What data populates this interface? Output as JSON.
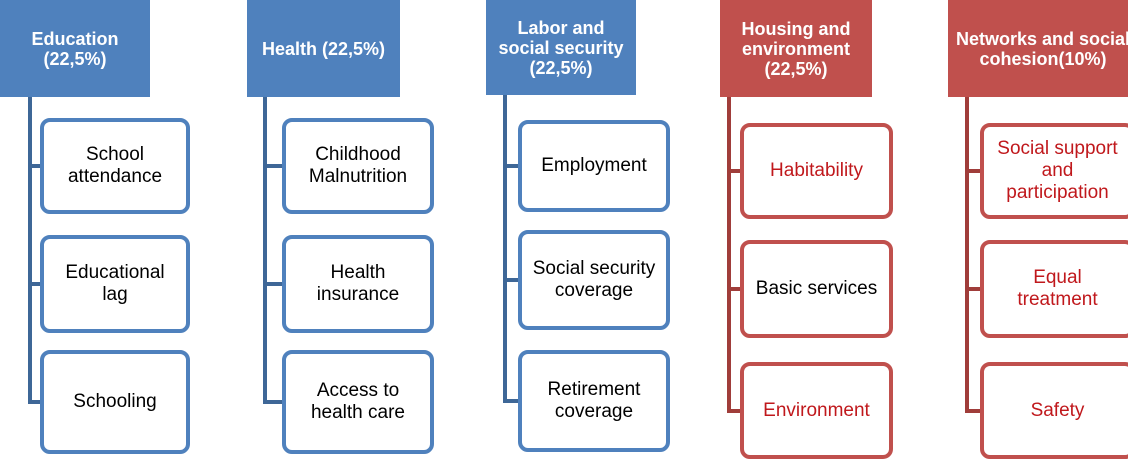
{
  "columns": [
    {
      "header": "Education (22,5%)",
      "children": [
        "School attendance",
        "Educational lag",
        "Schooling"
      ]
    },
    {
      "header": "Health (22,5%)",
      "children": [
        "Childhood Malnutrition",
        "Health insurance",
        "Access to health care"
      ]
    },
    {
      "header": "Labor and social security (22,5%)",
      "children": [
        "Employment",
        "Social security coverage",
        "Retirement coverage"
      ]
    },
    {
      "header": "Housing and environment (22,5%)",
      "children": [
        "Habitability",
        "Basic services",
        "Environment"
      ]
    },
    {
      "header": "Networks and social cohesion(10%)",
      "children": [
        "Social support and participation",
        "Equal treatment",
        "Safety"
      ]
    }
  ]
}
